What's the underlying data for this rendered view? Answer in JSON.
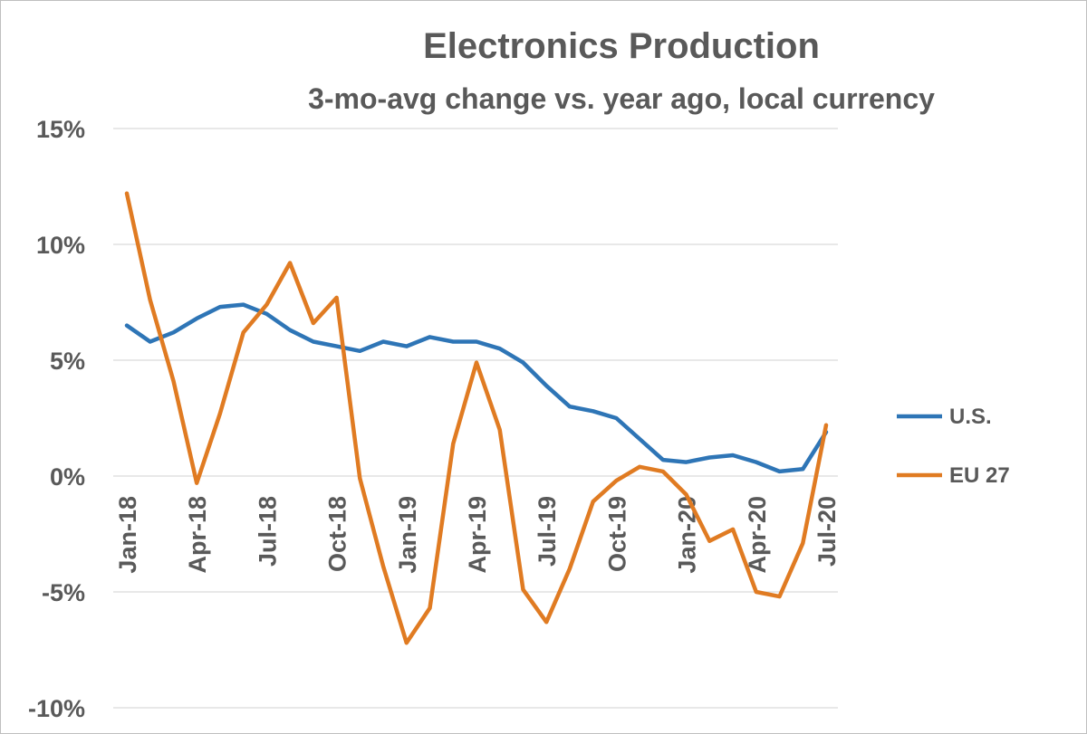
{
  "chart_data": {
    "type": "line",
    "title": "Electronics Production",
    "subtitle": "3-mo-avg change vs. year ago, local currency",
    "xlabel": "",
    "ylabel": "",
    "x": [
      "Jan-18",
      "Feb-18",
      "Mar-18",
      "Apr-18",
      "May-18",
      "Jun-18",
      "Jul-18",
      "Aug-18",
      "Sep-18",
      "Oct-18",
      "Nov-18",
      "Dec-18",
      "Jan-19",
      "Feb-19",
      "Mar-19",
      "Apr-19",
      "May-19",
      "Jun-19",
      "Jul-19",
      "Aug-19",
      "Sep-19",
      "Oct-19",
      "Nov-19",
      "Dec-19",
      "Jan-20",
      "Feb-20",
      "Mar-20",
      "Apr-20",
      "May-20",
      "Jun-20",
      "Jul-20"
    ],
    "x_tick_labels": [
      "Jan-18",
      "Apr-18",
      "Jul-18",
      "Oct-18",
      "Jan-19",
      "Apr-19",
      "Jul-19",
      "Oct-19",
      "Jan-20",
      "Apr-20",
      "Jul-20"
    ],
    "y_tick_labels": [
      "15%",
      "10%",
      "5%",
      "0%",
      "-5%",
      "-10%"
    ],
    "ylim": [
      -10,
      15
    ],
    "y_ticks": [
      15,
      10,
      5,
      0,
      -5,
      -10
    ],
    "grid": true,
    "legend_position": "right",
    "series": [
      {
        "name": "U.S.",
        "color": "#2e75b6",
        "values": [
          6.5,
          5.8,
          6.2,
          6.8,
          7.3,
          7.4,
          7.0,
          6.3,
          5.8,
          5.6,
          5.4,
          5.8,
          5.6,
          6.0,
          5.8,
          5.8,
          5.5,
          4.9,
          3.9,
          3.0,
          2.8,
          2.5,
          1.6,
          0.7,
          0.6,
          0.8,
          0.9,
          0.6,
          0.2,
          0.3,
          1.9
        ]
      },
      {
        "name": "EU 27",
        "color": "#e07b22",
        "values": [
          12.2,
          7.6,
          4.1,
          -0.3,
          2.7,
          6.2,
          7.4,
          9.2,
          6.6,
          7.7,
          -0.1,
          -3.9,
          -7.2,
          -5.7,
          1.4,
          4.9,
          2.0,
          -4.9,
          -6.3,
          -4.0,
          -1.1,
          -0.2,
          0.4,
          0.2,
          -0.8,
          -2.8,
          -2.3,
          -5.0,
          -5.2,
          -2.9,
          2.2
        ]
      }
    ]
  }
}
